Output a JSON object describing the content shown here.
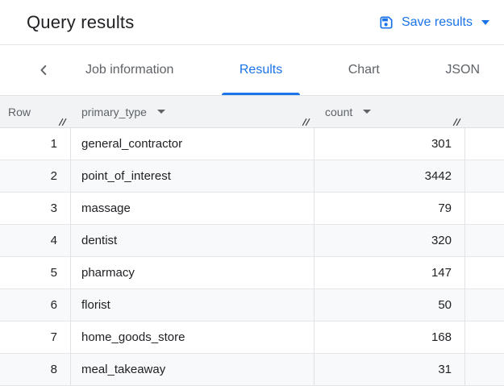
{
  "header": {
    "title": "Query results",
    "save_button_label": "Save results"
  },
  "tabs": {
    "items": [
      {
        "label": "Job information",
        "active": false
      },
      {
        "label": "Results",
        "active": true
      },
      {
        "label": "Chart",
        "active": false
      },
      {
        "label": "JSON",
        "active": false
      }
    ]
  },
  "table": {
    "columns": [
      {
        "label": "Row",
        "sortable": false
      },
      {
        "label": "primary_type",
        "sortable": true
      },
      {
        "label": "count",
        "sortable": true
      }
    ],
    "rows": [
      {
        "row": "1",
        "primary_type": "general_contractor",
        "count": "301"
      },
      {
        "row": "2",
        "primary_type": "point_of_interest",
        "count": "3442"
      },
      {
        "row": "3",
        "primary_type": "massage",
        "count": "79"
      },
      {
        "row": "4",
        "primary_type": "dentist",
        "count": "320"
      },
      {
        "row": "5",
        "primary_type": "pharmacy",
        "count": "147"
      },
      {
        "row": "6",
        "primary_type": "florist",
        "count": "50"
      },
      {
        "row": "7",
        "primary_type": "home_goods_store",
        "count": "168"
      },
      {
        "row": "8",
        "primary_type": "meal_takeaway",
        "count": "31"
      }
    ]
  },
  "colors": {
    "accent_blue": "#1a73e8",
    "text_dark": "#202124",
    "text_gray": "#5f6368",
    "header_bg": "#f1f3f4",
    "alt_row_bg": "#f8f9fa",
    "border": "#e0e2e5"
  }
}
